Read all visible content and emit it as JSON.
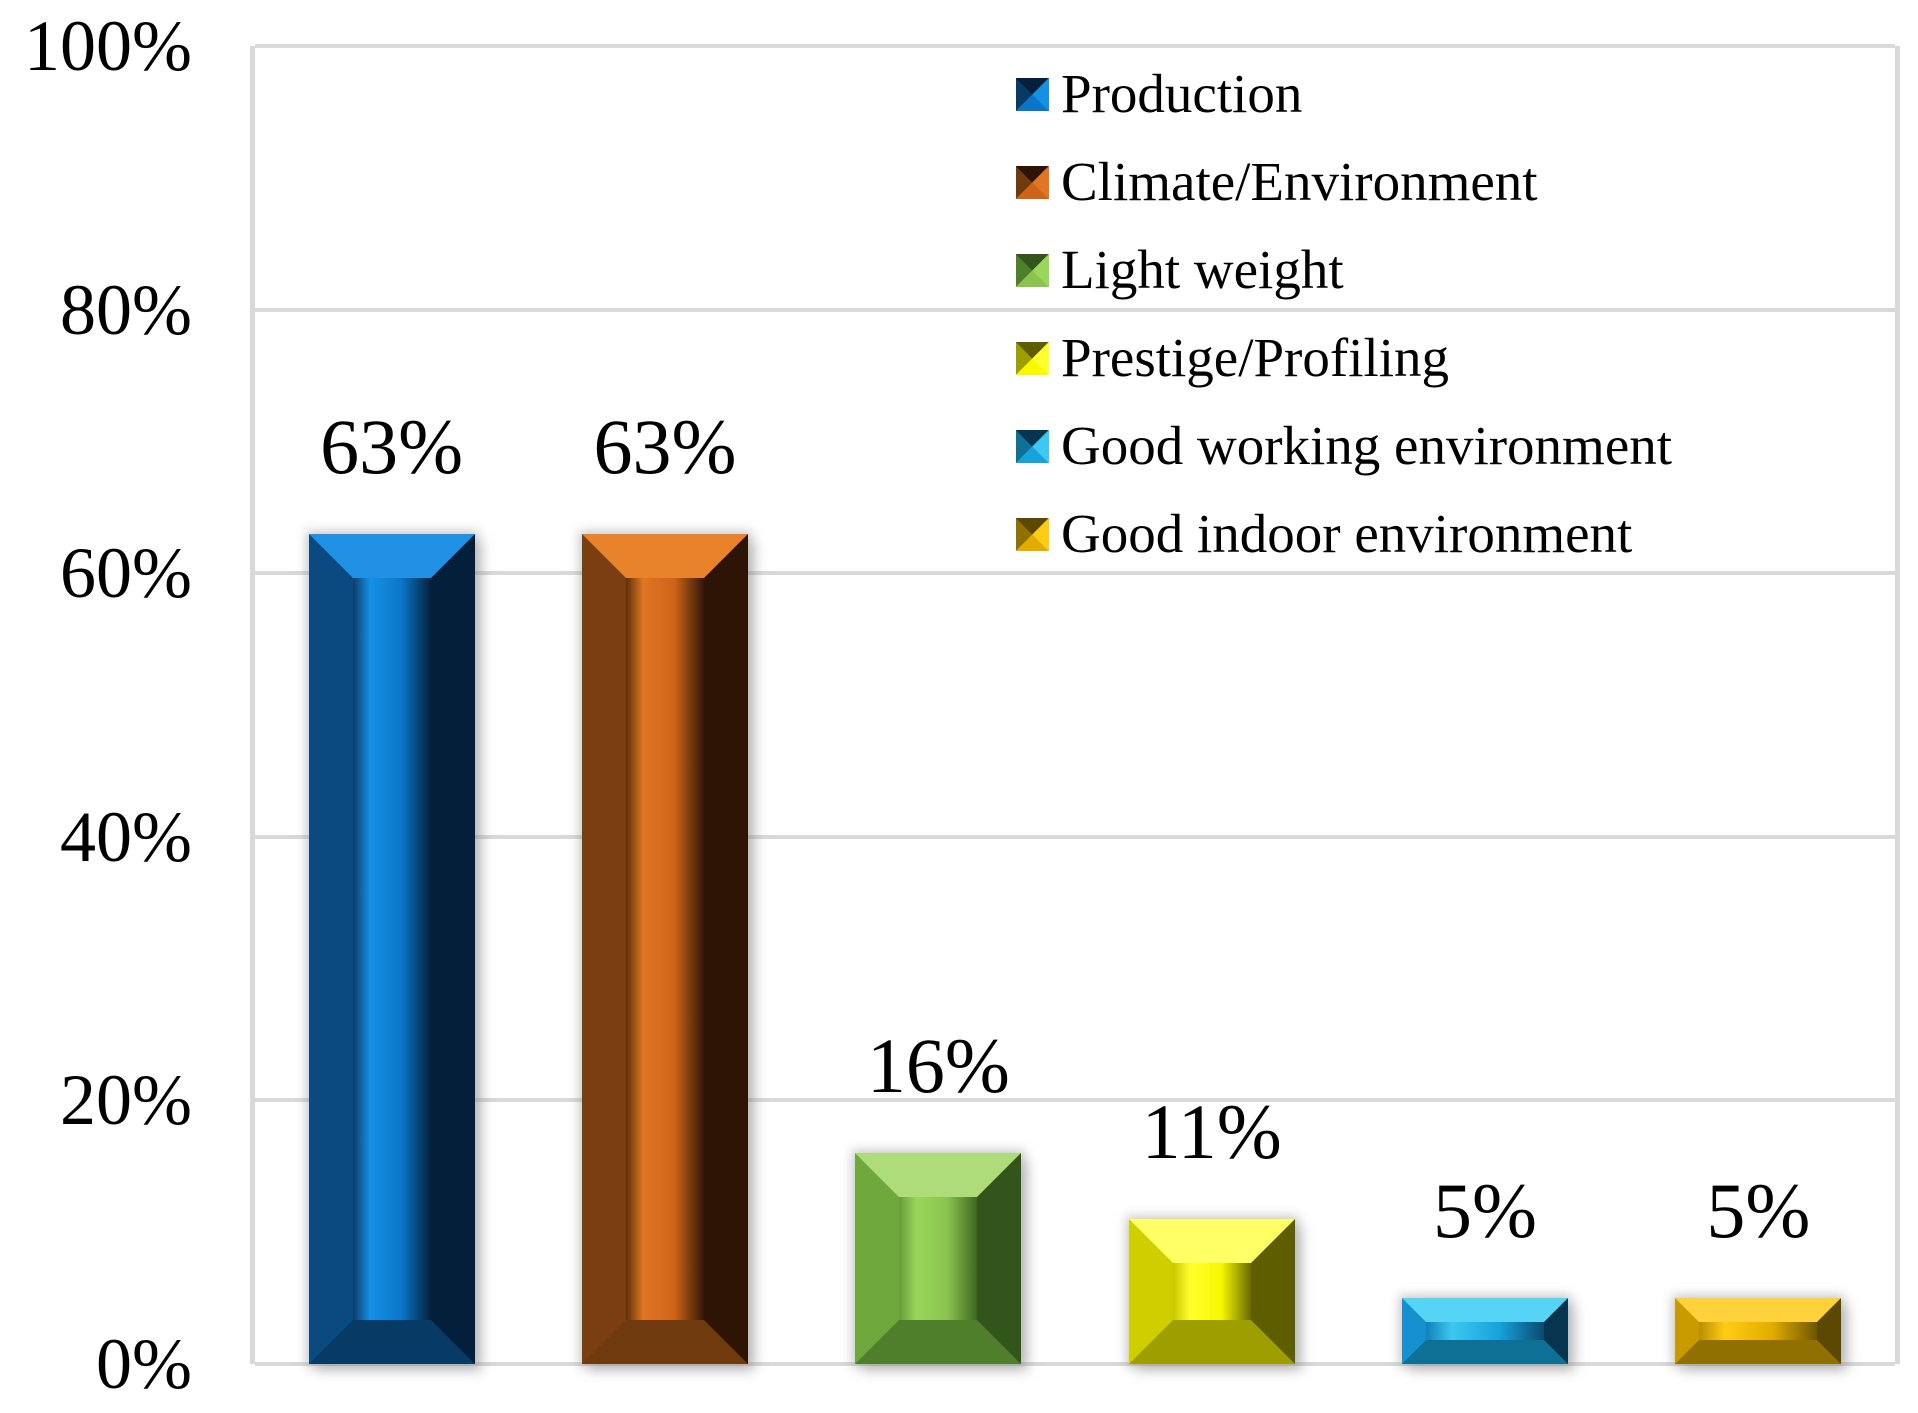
{
  "chart_data": {
    "type": "bar",
    "title": "",
    "xlabel": "",
    "ylabel": "",
    "categories": [
      "Production",
      "Climate/Environment",
      "Light weight",
      "Prestige/Profiling",
      "Good working environment",
      "Good indoor environment"
    ],
    "values": [
      63,
      63,
      16,
      11,
      5,
      5
    ],
    "data_labels": [
      "63%",
      "63%",
      "16%",
      "11%",
      "5%",
      "5%"
    ],
    "y_ticks": [
      {
        "label": "0%",
        "value": 0
      },
      {
        "label": "20%",
        "value": 20
      },
      {
        "label": "40%",
        "value": 40
      },
      {
        "label": "60%",
        "value": 60
      },
      {
        "label": "80%",
        "value": 80
      },
      {
        "label": "100%",
        "value": 100
      }
    ],
    "ylim": [
      0,
      100
    ],
    "grid": true,
    "legend_position": "top-right",
    "bar_style": "3d-bevel",
    "series_styles": [
      {
        "name": "Production",
        "face_edge": "#0F3C68",
        "face_hi": "#1490E6",
        "face_mid": "#0B76C8",
        "face_dark": "#05213C",
        "bevel_top": "#2191E6",
        "bevel_left": "#0A4A80",
        "bevel_right": "#041F39",
        "bevel_bottom": "#083A66"
      },
      {
        "name": "Climate/Environment",
        "face_edge": "#5E300C",
        "face_hi": "#E07622",
        "face_mid": "#CE6418",
        "face_dark": "#33170A",
        "bevel_top": "#E8832C",
        "bevel_left": "#7A3E10",
        "bevel_right": "#2E1405",
        "bevel_bottom": "#6E3A0E"
      },
      {
        "name": "Light weight",
        "face_edge": "#679C38",
        "face_hi": "#9AD65C",
        "face_mid": "#8AC44E",
        "face_dark": "#3F6823",
        "bevel_top": "#AEDC7A",
        "bevel_left": "#6FA83C",
        "bevel_right": "#33551B",
        "bevel_bottom": "#4F7F2A"
      },
      {
        "name": "Prestige/Profiling",
        "face_edge": "#C8C800",
        "face_hi": "#FFFF2E",
        "face_mid": "#F8F800",
        "face_dark": "#6A6A00",
        "bevel_top": "#FFFF66",
        "bevel_left": "#CFCF00",
        "bevel_right": "#5E5E00",
        "bevel_bottom": "#9E9E00"
      },
      {
        "name": "Good working environment",
        "face_edge": "#1180B8",
        "face_hi": "#3CC8F0",
        "face_mid": "#17A2DC",
        "face_dark": "#0A4A6E",
        "bevel_top": "#55D4F6",
        "bevel_left": "#1590CE",
        "bevel_right": "#07344F",
        "bevel_bottom": "#0F7096"
      },
      {
        "name": "Good indoor environment",
        "face_edge": "#B88E00",
        "face_hi": "#FFCC14",
        "face_mid": "#E2AC00",
        "face_dark": "#6E5600",
        "bevel_top": "#FFD23C",
        "bevel_left": "#C89A00",
        "bevel_right": "#5C4800",
        "bevel_bottom": "#8F7000"
      }
    ]
  },
  "colors": {
    "background": "#FFFFFF",
    "gridline": "#D9D9D9",
    "text": "#000000"
  }
}
